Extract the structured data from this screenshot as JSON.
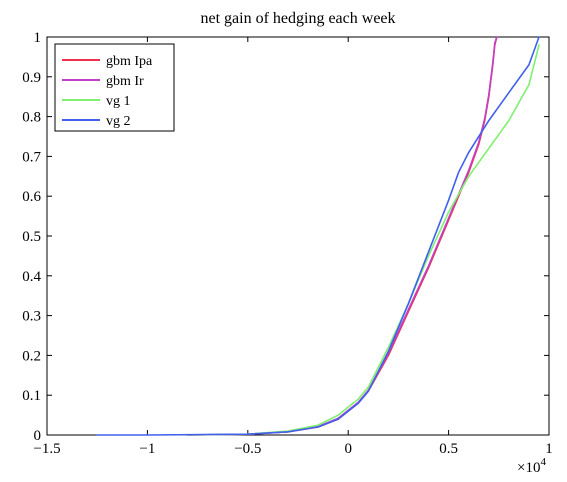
{
  "chart_data": {
    "type": "line",
    "title": "net gain of hedging each week",
    "xlabel": "",
    "ylabel": "",
    "x_exponent_label": "×10",
    "x_exponent_power": "4",
    "xlim": [
      -1.5,
      1.0
    ],
    "ylim": [
      0,
      1
    ],
    "x_ticks": [
      -1.5,
      -1,
      -0.5,
      0,
      0.5,
      1
    ],
    "x_tick_labels": [
      "−1.5",
      "−1",
      "−0.5",
      "0",
      "0.5",
      "1"
    ],
    "y_ticks": [
      0,
      0.1,
      0.2,
      0.3,
      0.4,
      0.5,
      0.6,
      0.7,
      0.8,
      0.9,
      1
    ],
    "y_tick_labels": [
      "0",
      "0.1",
      "0.2",
      "0.3",
      "0.4",
      "0.5",
      "0.6",
      "0.7",
      "0.8",
      "0.9",
      "1"
    ],
    "grid": false,
    "legend_position": "top-left",
    "series": [
      {
        "name": "gbm Ipa",
        "color": "#f0304a",
        "x": [
          -0.8,
          -0.5,
          -0.3,
          -0.15,
          -0.05,
          0,
          0.05,
          0.1,
          0.2,
          0.3,
          0.4,
          0.5,
          0.55,
          0.6,
          0.65,
          0.68,
          0.7,
          0.72,
          0.73,
          0.74
        ],
        "y": [
          0,
          0.002,
          0.008,
          0.02,
          0.04,
          0.06,
          0.08,
          0.11,
          0.2,
          0.31,
          0.42,
          0.54,
          0.6,
          0.66,
          0.73,
          0.79,
          0.85,
          0.93,
          0.98,
          1.0
        ]
      },
      {
        "name": "gbm Ir",
        "color": "#c040c8",
        "x": [
          -0.8,
          -0.5,
          -0.3,
          -0.15,
          -0.05,
          0,
          0.05,
          0.1,
          0.2,
          0.3,
          0.4,
          0.5,
          0.55,
          0.6,
          0.65,
          0.68,
          0.7,
          0.72,
          0.73,
          0.74
        ],
        "y": [
          0,
          0.002,
          0.008,
          0.021,
          0.042,
          0.062,
          0.082,
          0.112,
          0.205,
          0.315,
          0.425,
          0.545,
          0.605,
          0.665,
          0.735,
          0.795,
          0.855,
          0.935,
          0.985,
          1.0
        ]
      },
      {
        "name": "vg 1",
        "color": "#80f070",
        "x": [
          -0.8,
          -0.5,
          -0.3,
          -0.15,
          -0.05,
          0,
          0.05,
          0.1,
          0.2,
          0.3,
          0.4,
          0.5,
          0.6,
          0.7,
          0.8,
          0.9,
          0.95
        ],
        "y": [
          0,
          0.002,
          0.01,
          0.025,
          0.05,
          0.07,
          0.09,
          0.12,
          0.22,
          0.33,
          0.45,
          0.56,
          0.65,
          0.72,
          0.79,
          0.88,
          0.98
        ]
      },
      {
        "name": "vg 2",
        "color": "#4060ee",
        "x": [
          -1.25,
          -1.0,
          -0.5,
          -0.3,
          -0.15,
          -0.05,
          0,
          0.05,
          0.1,
          0.2,
          0.3,
          0.4,
          0.5,
          0.55,
          0.6,
          0.7,
          0.8,
          0.9,
          0.95
        ],
        "y": [
          0,
          0,
          0.002,
          0.008,
          0.02,
          0.04,
          0.06,
          0.08,
          0.11,
          0.21,
          0.33,
          0.46,
          0.59,
          0.66,
          0.71,
          0.79,
          0.86,
          0.93,
          1.0
        ]
      }
    ]
  }
}
